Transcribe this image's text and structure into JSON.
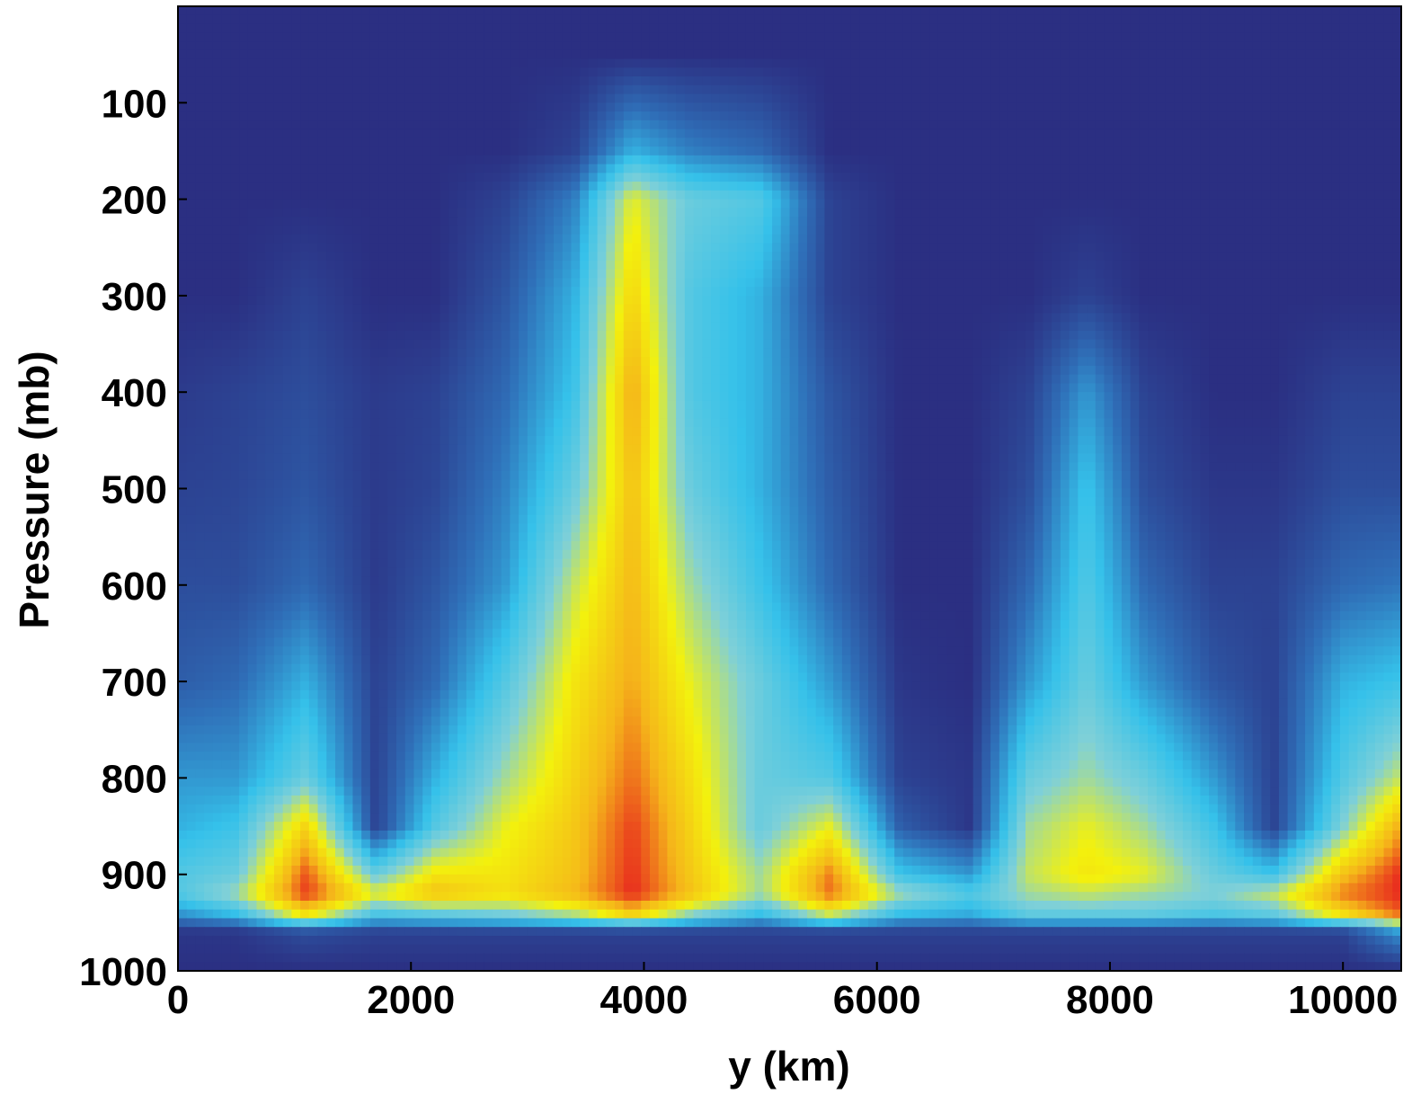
{
  "chart_data": {
    "type": "heatmap",
    "title": "",
    "xlabel": "y (km)",
    "ylabel": "Pressure (mb)",
    "xlim": [
      0,
      10500
    ],
    "ylim": [
      0,
      1000
    ],
    "y_reversed": true,
    "x_ticks": [
      "0",
      "2000",
      "4000",
      "6000",
      "8000",
      "10000"
    ],
    "x_tick_values": [
      0,
      2000,
      4000,
      6000,
      8000,
      10000
    ],
    "y_ticks": [
      "100",
      "200",
      "300",
      "400",
      "500",
      "600",
      "700",
      "800",
      "900",
      "1000"
    ],
    "y_tick_values": [
      100,
      200,
      300,
      400,
      500,
      600,
      700,
      800,
      900,
      1000
    ],
    "colormap": "jet",
    "colormap_stops": [
      "#2b2f82",
      "#2f6fb8",
      "#35c1ea",
      "#7fd0d8",
      "#f3f10d",
      "#f5b51a",
      "#e8281e"
    ],
    "grid": false,
    "x": [
      0,
      500,
      1100,
      1700,
      2200,
      2800,
      3400,
      3900,
      4400,
      5000,
      5600,
      6200,
      6800,
      7300,
      7800,
      8300,
      8900,
      9400,
      10000,
      10500
    ],
    "pressure": [
      50,
      150,
      200,
      300,
      400,
      500,
      600,
      700,
      800,
      850,
      900,
      920,
      940,
      960,
      1000
    ],
    "values": [
      [
        0.0,
        0.0,
        0.0,
        0.0,
        0.0,
        0.0,
        0.0,
        0.0,
        0.0,
        0.0,
        0.0,
        0.0,
        0.0,
        0.0,
        0.0,
        0.0,
        0.0,
        0.0,
        0.0,
        0.0
      ],
      [
        0.0,
        0.0,
        0.0,
        0.0,
        0.0,
        0.0,
        0.05,
        0.3,
        0.2,
        0.15,
        0.0,
        0.0,
        0.0,
        0.0,
        0.0,
        0.0,
        0.0,
        0.0,
        0.0,
        0.0
      ],
      [
        0.0,
        0.0,
        0.0,
        0.0,
        0.0,
        0.05,
        0.2,
        0.65,
        0.45,
        0.4,
        0.05,
        0.0,
        0.0,
        0.0,
        0.0,
        0.0,
        0.0,
        0.0,
        0.0,
        0.0
      ],
      [
        0.0,
        0.0,
        0.05,
        0.0,
        0.0,
        0.1,
        0.3,
        0.75,
        0.4,
        0.3,
        0.05,
        0.0,
        0.0,
        0.0,
        0.05,
        0.0,
        0.0,
        0.0,
        0.0,
        0.0
      ],
      [
        0.03,
        0.05,
        0.08,
        0.03,
        0.05,
        0.15,
        0.35,
        0.85,
        0.4,
        0.3,
        0.1,
        0.0,
        0.0,
        0.05,
        0.25,
        0.05,
        0.0,
        0.0,
        0.05,
        0.05
      ],
      [
        0.05,
        0.06,
        0.1,
        0.03,
        0.06,
        0.2,
        0.45,
        0.8,
        0.45,
        0.3,
        0.12,
        0.0,
        0.0,
        0.08,
        0.35,
        0.08,
        0.02,
        0.02,
        0.08,
        0.08
      ],
      [
        0.08,
        0.08,
        0.15,
        0.03,
        0.1,
        0.25,
        0.6,
        0.82,
        0.55,
        0.35,
        0.15,
        0.0,
        0.0,
        0.15,
        0.4,
        0.15,
        0.05,
        0.05,
        0.15,
        0.18
      ],
      [
        0.12,
        0.15,
        0.3,
        0.05,
        0.15,
        0.4,
        0.7,
        0.85,
        0.65,
        0.45,
        0.25,
        0.02,
        0.0,
        0.25,
        0.45,
        0.25,
        0.1,
        0.05,
        0.3,
        0.35
      ],
      [
        0.25,
        0.25,
        0.45,
        0.05,
        0.3,
        0.55,
        0.75,
        0.92,
        0.72,
        0.45,
        0.4,
        0.05,
        0.02,
        0.45,
        0.55,
        0.45,
        0.25,
        0.05,
        0.4,
        0.6
      ],
      [
        0.3,
        0.35,
        0.75,
        0.05,
        0.4,
        0.65,
        0.78,
        0.97,
        0.75,
        0.45,
        0.65,
        0.12,
        0.02,
        0.55,
        0.65,
        0.55,
        0.35,
        0.05,
        0.5,
        0.85
      ],
      [
        0.4,
        0.45,
        0.95,
        0.45,
        0.7,
        0.7,
        0.8,
        0.99,
        0.78,
        0.55,
        0.9,
        0.35,
        0.25,
        0.6,
        0.7,
        0.65,
        0.45,
        0.35,
        0.8,
        1.0
      ],
      [
        0.4,
        0.55,
        0.98,
        0.65,
        0.8,
        0.72,
        0.82,
        1.0,
        0.8,
        0.55,
        0.92,
        0.55,
        0.4,
        0.55,
        0.6,
        0.55,
        0.5,
        0.6,
        0.9,
        1.0
      ],
      [
        0.25,
        0.35,
        0.75,
        0.4,
        0.45,
        0.5,
        0.6,
        0.8,
        0.55,
        0.35,
        0.65,
        0.35,
        0.3,
        0.45,
        0.45,
        0.45,
        0.4,
        0.45,
        0.75,
        0.95
      ],
      [
        0.02,
        0.02,
        0.08,
        0.05,
        0.05,
        0.05,
        0.05,
        0.05,
        0.05,
        0.05,
        0.05,
        0.05,
        0.05,
        0.05,
        0.05,
        0.05,
        0.05,
        0.05,
        0.05,
        0.25
      ],
      [
        0.0,
        0.0,
        0.0,
        0.0,
        0.0,
        0.0,
        0.0,
        0.0,
        0.0,
        0.0,
        0.0,
        0.0,
        0.0,
        0.0,
        0.0,
        0.0,
        0.0,
        0.0,
        0.0,
        0.0
      ]
    ]
  }
}
